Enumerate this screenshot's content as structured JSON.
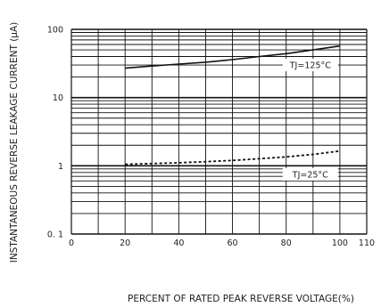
{
  "chart_data": {
    "type": "line",
    "xlabel": "PERCENT OF RATED PEAK REVERSE VOLTAGE(%)",
    "ylabel": "INSTANTANEOUS REVERSE LEAKAGE CURRENT (µA)",
    "xlim": [
      0,
      110
    ],
    "ylim": [
      0.1,
      100
    ],
    "yscale": "log",
    "x_ticks": [
      0,
      20,
      40,
      60,
      80,
      100,
      110
    ],
    "x_tick_labels": [
      "0",
      "20",
      "40",
      "60",
      "80",
      "100",
      "110"
    ],
    "y_ticks": [
      0.1,
      1,
      10,
      100
    ],
    "y_tick_labels": [
      "0. 1",
      "1",
      "10",
      "100"
    ],
    "grid": true,
    "series": [
      {
        "name": "TJ=125°C",
        "style": "solid",
        "color": "#111111",
        "x": [
          20,
          30,
          40,
          50,
          60,
          70,
          80,
          90,
          100
        ],
        "values": [
          27,
          29,
          31,
          33,
          36,
          40,
          44,
          50,
          57
        ]
      },
      {
        "name": "TJ=25°C",
        "style": "dashed",
        "color": "#111111",
        "x": [
          20,
          30,
          40,
          50,
          60,
          70,
          80,
          90,
          100
        ],
        "values": [
          1.05,
          1.08,
          1.11,
          1.15,
          1.2,
          1.27,
          1.35,
          1.47,
          1.65
        ]
      }
    ],
    "annotations": [
      {
        "text": "TJ=125°C",
        "x": 89,
        "y": 30
      },
      {
        "text": "TJ=25°C",
        "x": 89,
        "y": 0.75
      }
    ]
  }
}
